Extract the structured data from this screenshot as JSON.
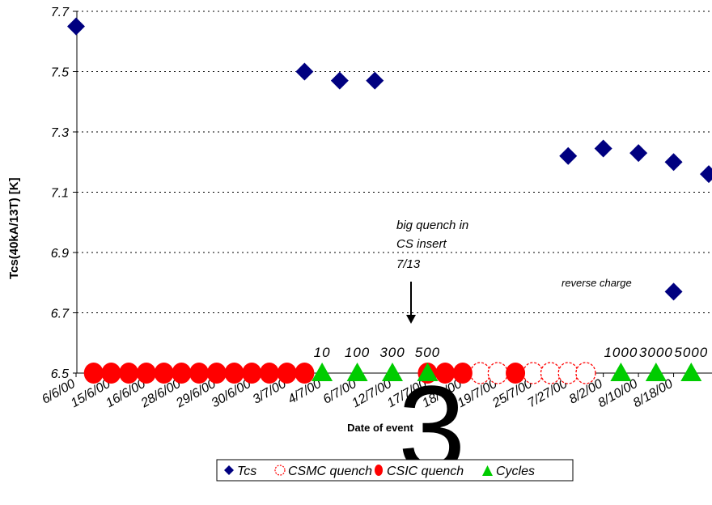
{
  "chart_data": {
    "type": "scatter",
    "ylabel": "Tcs(40kA/13T)       [K]",
    "xlabel": "Date of event",
    "ylim": [
      6.5,
      7.7
    ],
    "yticks": [
      "7.7",
      "7.5",
      "7.3",
      "7.1",
      "6.9",
      "6.7",
      "6.5"
    ],
    "grid": true,
    "categories": [
      "6/6/00",
      "15/6/00",
      "16/6/00",
      "28/6/00",
      "29/6/00",
      "30/6/00",
      "3/7/00",
      "4/7/00",
      "6/7/00",
      "12/7/00",
      "17/7/00",
      "18/7/00",
      "19/7/00",
      "25/7/00",
      "7/27/00",
      "8/2/00",
      "8/10/00",
      "8/18/00"
    ],
    "series": [
      {
        "name": "Tcs",
        "color": "#000080",
        "marker": "diamond",
        "points": [
          [
            0,
            7.65
          ],
          [
            6.5,
            7.5
          ],
          [
            7.5,
            7.47
          ],
          [
            8.5,
            7.47
          ],
          [
            14,
            7.22
          ],
          [
            15,
            7.245
          ],
          [
            16,
            7.23
          ],
          [
            17,
            7.2
          ],
          [
            18,
            7.16
          ],
          [
            17,
            6.77
          ]
        ]
      },
      {
        "name": "CSMC quench",
        "color": "#ff0000",
        "marker": "circle-open",
        "points": [
          [
            11.5,
            6.5
          ],
          [
            12,
            6.5
          ],
          [
            13,
            6.5
          ],
          [
            13.5,
            6.5
          ],
          [
            14,
            6.5
          ],
          [
            14.5,
            6.5
          ]
        ]
      },
      {
        "name": "CSIC quench",
        "color": "#ff0000",
        "marker": "circle-filled",
        "points": [
          [
            0.5,
            6.5
          ],
          [
            1,
            6.5
          ],
          [
            1.5,
            6.5
          ],
          [
            2,
            6.5
          ],
          [
            2.5,
            6.5
          ],
          [
            3,
            6.5
          ],
          [
            3.5,
            6.5
          ],
          [
            4,
            6.5
          ],
          [
            4.5,
            6.5
          ],
          [
            5,
            6.5
          ],
          [
            5.5,
            6.5
          ],
          [
            6,
            6.5
          ],
          [
            6.5,
            6.5
          ],
          [
            10,
            6.5
          ],
          [
            10.5,
            6.5
          ],
          [
            11,
            6.5
          ],
          [
            12.5,
            6.5
          ]
        ]
      },
      {
        "name": "Cycles",
        "color": "#00cc00",
        "marker": "triangle",
        "points": [
          [
            7,
            6.5
          ],
          [
            8,
            6.5
          ],
          [
            9,
            6.5
          ],
          [
            10,
            6.5
          ],
          [
            15.5,
            6.5
          ],
          [
            16.5,
            6.5
          ],
          [
            17.5,
            6.5
          ]
        ]
      }
    ],
    "cycle_labels": [
      {
        "x": 7,
        "text": "10"
      },
      {
        "x": 8,
        "text": "100"
      },
      {
        "x": 9,
        "text": "300"
      },
      {
        "x": 10,
        "text": "500"
      },
      {
        "x": 15.5,
        "text": "1000"
      },
      {
        "x": 16.5,
        "text": "3000"
      },
      {
        "x": 17.5,
        "text": "5000"
      }
    ],
    "annotations": {
      "big_quench_1": "big quench in",
      "big_quench_2": "CS insert",
      "big_quench_3": "7/13",
      "reverse_charge": "reverse charge"
    },
    "overlay_digit": "3",
    "legend": {
      "position": "bottom",
      "items": [
        "Tcs",
        "CSMC quench",
        "CSIC quench",
        "Cycles"
      ]
    }
  }
}
